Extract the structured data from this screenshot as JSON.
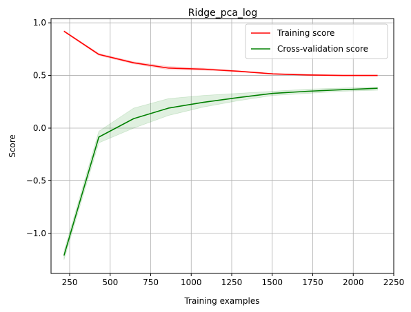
{
  "chart_data": {
    "type": "line",
    "title": "Ridge_pca_log",
    "xlabel": "Training examples",
    "ylabel": "Score",
    "xlim": [
      135,
      2250
    ],
    "ylim": [
      -1.38,
      1.04
    ],
    "x_ticks": [
      250,
      500,
      750,
      1000,
      1250,
      1500,
      1750,
      2000,
      2250
    ],
    "y_ticks": [
      1.0,
      0.5,
      0.0,
      -0.5,
      -1.0
    ],
    "x_tick_labels": [
      "250",
      "500",
      "750",
      "1000",
      "1250",
      "1500",
      "1750",
      "2000",
      "2250"
    ],
    "y_tick_labels": [
      "1.0",
      "0.5",
      "0.0",
      "−0.5",
      "−1.0"
    ],
    "grid": true,
    "legend_position": "top-right",
    "x": [
      215,
      430,
      645,
      860,
      1075,
      1290,
      1505,
      1720,
      1935,
      2150
    ],
    "series": [
      {
        "name": "Training score",
        "color": "#ff0000",
        "values": [
          0.92,
          0.7,
          0.62,
          0.57,
          0.56,
          0.54,
          0.515,
          0.505,
          0.5,
          0.5
        ],
        "band_lower": [
          0.915,
          0.69,
          0.61,
          0.555,
          0.55,
          0.535,
          0.51,
          0.5,
          0.495,
          0.495
        ],
        "band_upper": [
          0.925,
          0.71,
          0.63,
          0.585,
          0.57,
          0.545,
          0.52,
          0.51,
          0.505,
          0.505
        ]
      },
      {
        "name": "Cross-validation score",
        "color": "#008000",
        "values": [
          -1.21,
          -0.085,
          0.09,
          0.19,
          0.245,
          0.29,
          0.33,
          0.35,
          0.365,
          0.378
        ],
        "band_lower": [
          -1.25,
          -0.14,
          0.0,
          0.12,
          0.2,
          0.26,
          0.31,
          0.33,
          0.35,
          0.36
        ],
        "band_upper": [
          -1.17,
          -0.03,
          0.19,
          0.28,
          0.31,
          0.33,
          0.35,
          0.37,
          0.38,
          0.39
        ]
      }
    ]
  }
}
